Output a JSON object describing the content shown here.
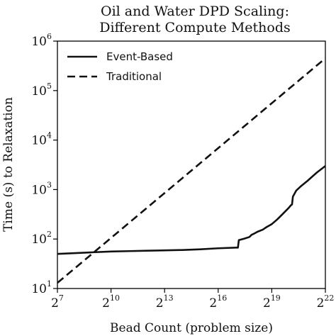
{
  "chart_data": {
    "type": "line",
    "title": [
      "Oil and Water DPD Scaling:",
      "Different Compute Methods"
    ],
    "xlabel": "Bead Count (problem size)",
    "ylabel": "Time (s) to Relaxation",
    "x_scale": "log2",
    "y_scale": "log10",
    "xlim": [
      128,
      4194304
    ],
    "ylim": [
      10,
      1000000
    ],
    "x_ticks": [
      {
        "value": 128,
        "base": "2",
        "exp": "7"
      },
      {
        "value": 1024,
        "base": "2",
        "exp": "10"
      },
      {
        "value": 8192,
        "base": "2",
        "exp": "13"
      },
      {
        "value": 65536,
        "base": "2",
        "exp": "16"
      },
      {
        "value": 524288,
        "base": "2",
        "exp": "19"
      },
      {
        "value": 4194304,
        "base": "2",
        "exp": "22"
      }
    ],
    "y_ticks": [
      {
        "value": 10,
        "base": "10",
        "exp": "1"
      },
      {
        "value": 100,
        "base": "10",
        "exp": "2"
      },
      {
        "value": 1000,
        "base": "10",
        "exp": "3"
      },
      {
        "value": 10000,
        "base": "10",
        "exp": "4"
      },
      {
        "value": 100000,
        "base": "10",
        "exp": "5"
      },
      {
        "value": 1000000,
        "base": "10",
        "exp": "6"
      }
    ],
    "grid": false,
    "legend_position": "top-left",
    "series": [
      {
        "name": "Event-Based",
        "style": "solid",
        "color": "#111111",
        "points": [
          [
            128,
            50
          ],
          [
            256,
            52
          ],
          [
            512,
            54
          ],
          [
            1024,
            56
          ],
          [
            2048,
            57
          ],
          [
            4096,
            58
          ],
          [
            8192,
            59
          ],
          [
            16384,
            60
          ],
          [
            32768,
            62
          ],
          [
            65536,
            65
          ],
          [
            131072,
            67
          ],
          [
            141000,
            67
          ],
          [
            146000,
            95
          ],
          [
            181000,
            102
          ],
          [
            220000,
            110
          ],
          [
            240000,
            122
          ],
          [
            262144,
            128
          ],
          [
            300000,
            140
          ],
          [
            370000,
            155
          ],
          [
            430000,
            175
          ],
          [
            524288,
            200
          ],
          [
            650000,
            250
          ],
          [
            800000,
            320
          ],
          [
            1000000,
            420
          ],
          [
            1100000,
            480
          ],
          [
            1150000,
            500
          ],
          [
            1190000,
            720
          ],
          [
            1350000,
            950
          ],
          [
            1600000,
            1150
          ],
          [
            2097152,
            1500
          ],
          [
            3000000,
            2200
          ],
          [
            4194304,
            3000
          ]
        ]
      },
      {
        "name": "Traditional",
        "style": "dashed",
        "color": "#111111",
        "points": [
          [
            128,
            13
          ],
          [
            4194304,
            450000
          ]
        ]
      }
    ]
  }
}
